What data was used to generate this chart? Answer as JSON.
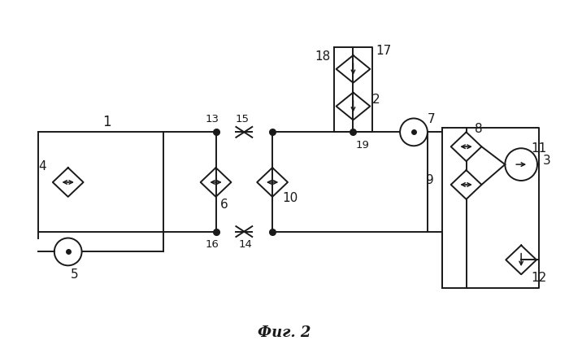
{
  "bg_color": "#ffffff",
  "line_color": "#1a1a1a",
  "title": "Фиг. 2",
  "title_fontsize": 13,
  "title_fontstyle": "bold"
}
